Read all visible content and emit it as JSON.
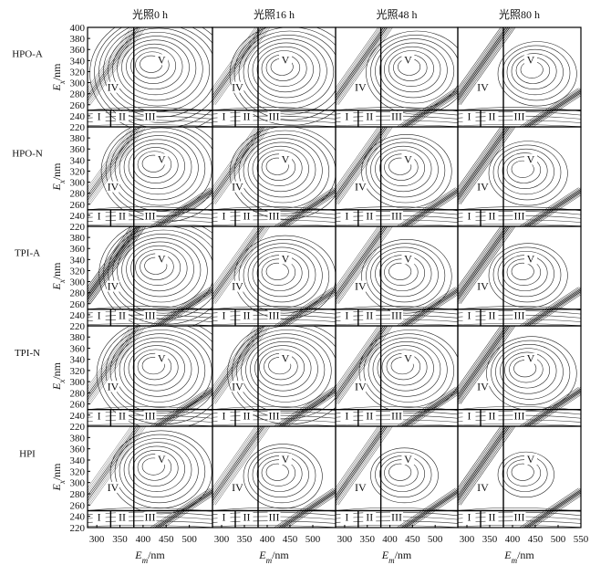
{
  "chart_data": {
    "type": "contour",
    "figure": "EEM fluorescence contour matrix",
    "columns": [
      "光照0 h",
      "光照16 h",
      "光照48 h",
      "光照80 h"
    ],
    "rows": [
      "HPO-A",
      "HPO-N",
      "TPI-A",
      "TPI-N",
      "HPI"
    ],
    "ylabel_main": "E",
    "ylabel_sub": "x",
    "ylabel_unit": "/nm",
    "xlabel_main": "E",
    "xlabel_sub": "m",
    "xlabel_unit": "/nm",
    "y_ticks": [
      "220",
      "240",
      "260",
      "280",
      "300",
      "320",
      "340",
      "360",
      "380",
      "400"
    ],
    "y_ticks_inner": [
      "220",
      "240",
      "260",
      "280",
      "300",
      "320",
      "340",
      "360",
      "380"
    ],
    "ylim": [
      220,
      400
    ],
    "xlim": [
      280,
      550
    ],
    "x_ticks_col": [
      "300",
      "350",
      "400",
      "450",
      "500"
    ],
    "x_tick_last": "550",
    "regions": [
      "I",
      "II",
      "III",
      "IV",
      "V"
    ],
    "region_boundaries": {
      "em": [
        330,
        380
      ],
      "ex": 250
    },
    "peak_centers_V": [
      [
        [
          415,
          335,
          1.0
        ],
        [
          430,
          330,
          0.8
        ],
        [
          440,
          330,
          0.55
        ],
        [
          440,
          325,
          0.35
        ]
      ],
      [
        [
          420,
          335,
          0.75
        ],
        [
          420,
          330,
          0.65
        ],
        [
          420,
          330,
          0.45
        ],
        [
          420,
          325,
          0.35
        ]
      ],
      [
        [
          425,
          330,
          0.9
        ],
        [
          420,
          320,
          0.6
        ],
        [
          420,
          320,
          0.4
        ],
        [
          420,
          320,
          0.3
        ]
      ],
      [
        [
          420,
          330,
          0.9
        ],
        [
          425,
          330,
          0.75
        ],
        [
          425,
          330,
          0.55
        ],
        [
          425,
          325,
          0.45
        ]
      ],
      [
        [
          420,
          330,
          0.5
        ],
        [
          420,
          320,
          0.3
        ],
        [
          420,
          320,
          0.2
        ],
        [
          420,
          320,
          0.15
        ]
      ]
    ]
  }
}
